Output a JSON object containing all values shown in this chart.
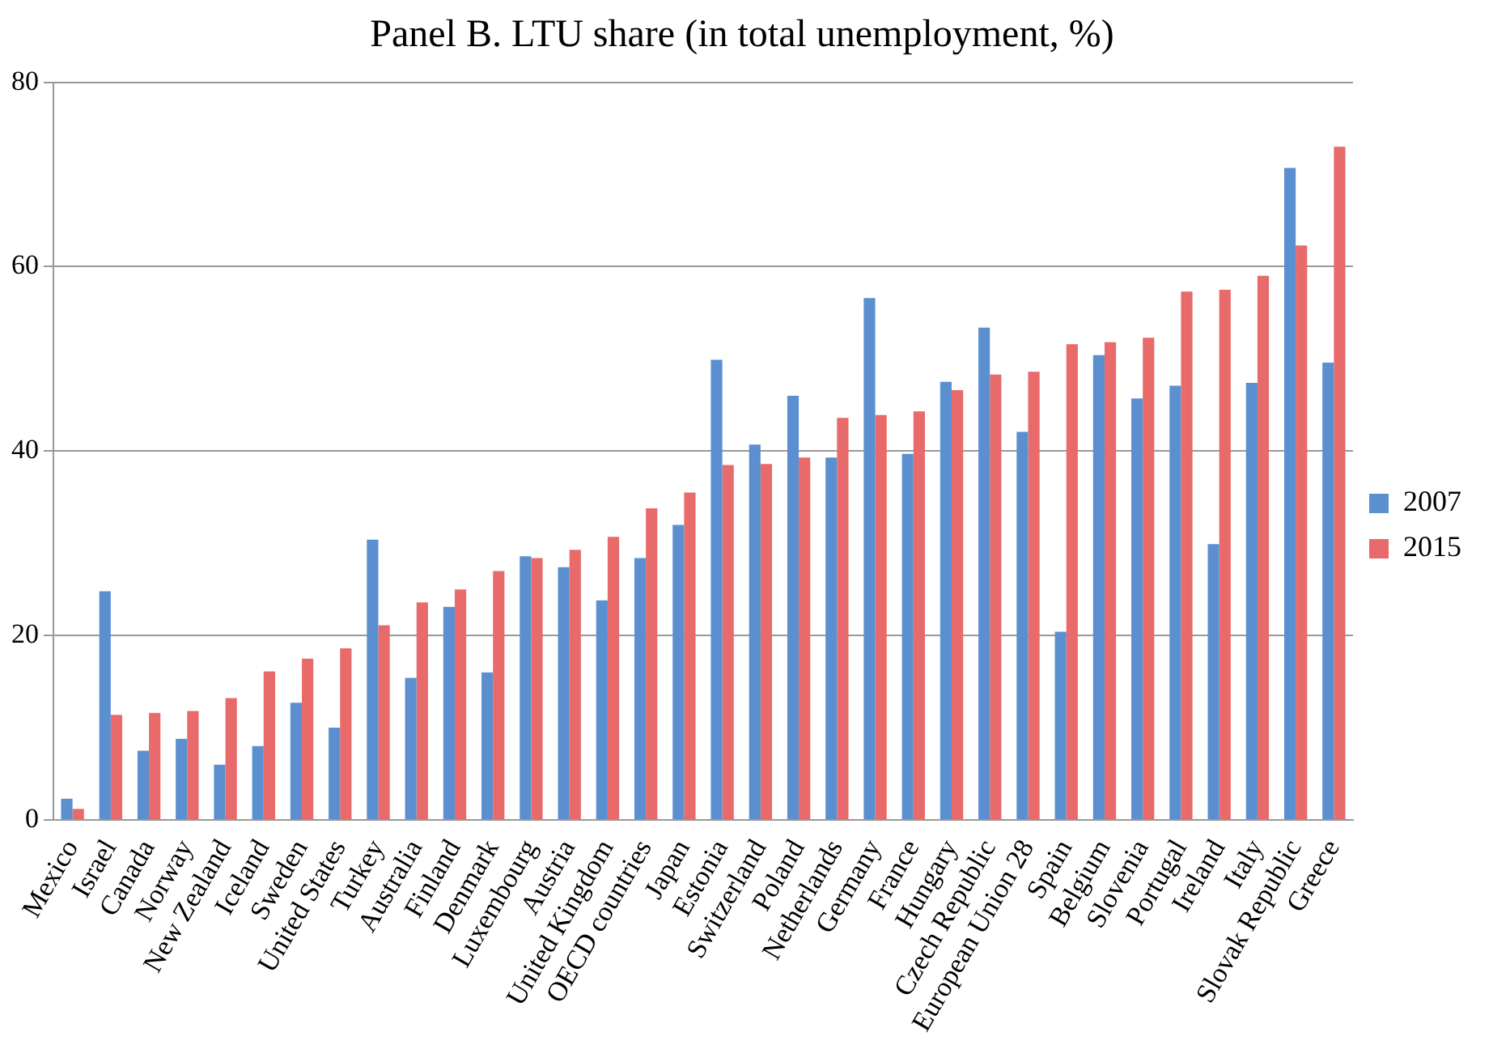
{
  "chart_data": {
    "type": "bar",
    "title": "Panel B. LTU share (in total unemployment, %)",
    "categories": [
      "Mexico",
      "Israel",
      "Canada",
      "Norway",
      "New Zealand",
      "Iceland",
      "Sweden",
      "United States",
      "Turkey",
      "Australia",
      "Finland",
      "Denmark",
      "Luxembourg",
      "Austria",
      "United Kingdom",
      "OECD countries",
      "Japan",
      "Estonia",
      "Switzerland",
      "Poland",
      "Netherlands",
      "Germany",
      "France",
      "Hungary",
      "Czech Republic",
      "European Union 28",
      "Spain",
      "Belgium",
      "Slovenia",
      "Portugal",
      "Ireland",
      "Italy",
      "Slovak Republic",
      "Greece"
    ],
    "series": [
      {
        "name": "2007",
        "color": "#5b8fd0",
        "values": [
          2.3,
          24.8,
          7.5,
          8.8,
          6.0,
          8.0,
          12.7,
          10.0,
          30.4,
          15.4,
          23.1,
          16.0,
          28.6,
          27.4,
          23.8,
          28.4,
          32.0,
          49.9,
          40.7,
          46.0,
          39.3,
          56.6,
          39.7,
          47.5,
          53.4,
          42.1,
          20.4,
          50.4,
          45.7,
          47.1,
          29.9,
          47.4,
          70.7,
          49.6
        ]
      },
      {
        "name": "2015",
        "color": "#e86a6a",
        "values": [
          1.2,
          11.4,
          11.6,
          11.8,
          13.2,
          16.1,
          17.5,
          18.6,
          21.1,
          23.6,
          25.0,
          27.0,
          28.4,
          29.3,
          30.7,
          33.8,
          35.5,
          38.5,
          38.6,
          39.3,
          43.6,
          43.9,
          44.3,
          46.6,
          48.3,
          48.6,
          51.6,
          51.8,
          52.3,
          57.3,
          57.5,
          59.0,
          62.3,
          73.0
        ]
      }
    ],
    "ylim": [
      0,
      80
    ],
    "yticks": [
      0,
      20,
      40,
      60,
      80
    ],
    "grid": "y",
    "legend": "right"
  }
}
